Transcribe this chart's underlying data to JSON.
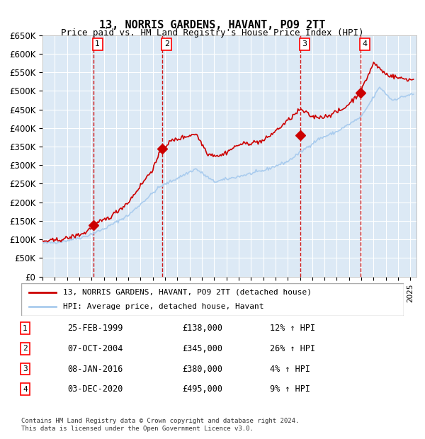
{
  "title": "13, NORRIS GARDENS, HAVANT, PO9 2TT",
  "subtitle": "Price paid vs. HM Land Registry's House Price Index (HPI)",
  "ylabel": "",
  "ylim": [
    0,
    650000
  ],
  "yticks": [
    0,
    50000,
    100000,
    150000,
    200000,
    250000,
    300000,
    350000,
    400000,
    450000,
    500000,
    550000,
    600000,
    650000
  ],
  "ytick_labels": [
    "£0",
    "£50K",
    "£100K",
    "£150K",
    "£200K",
    "£250K",
    "£300K",
    "£350K",
    "£400K",
    "£450K",
    "£500K",
    "£550K",
    "£600K",
    "£650K"
  ],
  "xlim_start": 1995.0,
  "xlim_end": 2025.5,
  "background_color": "#ffffff",
  "chart_bg_color": "#dce9f5",
  "grid_color": "#ffffff",
  "sale_line_color": "#cc0000",
  "hpi_line_color": "#aaccee",
  "sale_marker_color": "#cc0000",
  "vline_color": "#cc0000",
  "purchases": [
    {
      "num": 1,
      "date_year": 1999.14,
      "price": 138000,
      "label": "25-FEB-1999",
      "price_str": "£138,000",
      "pct": "12% ↑ HPI"
    },
    {
      "num": 2,
      "date_year": 2004.77,
      "price": 345000,
      "label": "07-OCT-2004",
      "price_str": "£345,000",
      "pct": "26% ↑ HPI"
    },
    {
      "num": 3,
      "date_year": 2016.03,
      "price": 380000,
      "label": "08-JAN-2016",
      "price_str": "£380,000",
      "pct": "4% ↑ HPI"
    },
    {
      "num": 4,
      "date_year": 2020.92,
      "price": 495000,
      "label": "03-DEC-2020",
      "price_str": "£495,000",
      "pct": "9% ↑ HPI"
    }
  ],
  "legend_line1": "13, NORRIS GARDENS, HAVANT, PO9 2TT (detached house)",
  "legend_line2": "HPI: Average price, detached house, Havant",
  "footnote1": "Contains HM Land Registry data © Crown copyright and database right 2024.",
  "footnote2": "This data is licensed under the Open Government Licence v3.0."
}
